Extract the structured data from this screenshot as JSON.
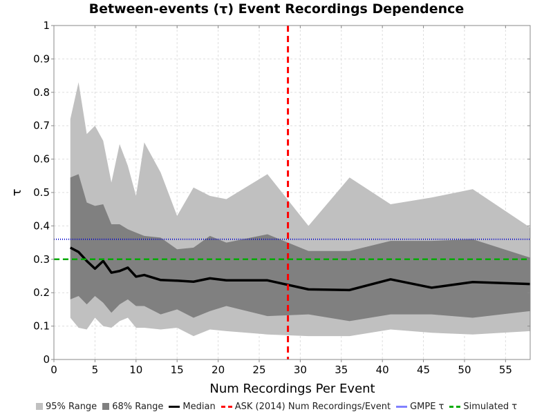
{
  "chart_data": {
    "type": "area",
    "title": "Between-events (τ) Event Recordings Dependence",
    "xlabel": "Num Recordings Per Event",
    "ylabel": "τ",
    "xlim": [
      0,
      58
    ],
    "ylim": [
      0,
      1
    ],
    "xticks": [
      "0",
      "5",
      "10",
      "15",
      "20",
      "25",
      "30",
      "35",
      "40",
      "45",
      "50",
      "55"
    ],
    "yticks": [
      "0",
      "0.1",
      "0.2",
      "0.3",
      "0.4",
      "0.5",
      "0.6",
      "0.7",
      "0.8",
      "0.9",
      "1"
    ],
    "grid": true,
    "legend_position": "bottom",
    "x": [
      2,
      3,
      4,
      5,
      6,
      7,
      8,
      9,
      10,
      11,
      13,
      15,
      17,
      19,
      21,
      26,
      31,
      36,
      41,
      46,
      51,
      58
    ],
    "series": [
      {
        "name": "95% Range",
        "kind": "band",
        "color": "#c0c0c0",
        "lower": [
          0.125,
          0.095,
          0.09,
          0.125,
          0.1,
          0.095,
          0.115,
          0.125,
          0.095,
          0.095,
          0.09,
          0.095,
          0.07,
          0.09,
          0.085,
          0.075,
          0.07,
          0.07,
          0.09,
          0.08,
          0.075,
          0.085
        ],
        "upper": [
          0.72,
          0.83,
          0.675,
          0.7,
          0.655,
          0.53,
          0.645,
          0.58,
          0.49,
          0.65,
          0.56,
          0.43,
          0.515,
          0.49,
          0.48,
          0.555,
          0.4,
          0.545,
          0.465,
          0.485,
          0.51,
          0.395
        ]
      },
      {
        "name": "68% Range",
        "kind": "band",
        "color": "#808080",
        "lower": [
          0.18,
          0.19,
          0.165,
          0.19,
          0.17,
          0.14,
          0.165,
          0.18,
          0.16,
          0.16,
          0.135,
          0.15,
          0.125,
          0.145,
          0.16,
          0.13,
          0.135,
          0.115,
          0.135,
          0.135,
          0.125,
          0.145
        ],
        "upper": [
          0.545,
          0.555,
          0.47,
          0.46,
          0.465,
          0.405,
          0.405,
          0.39,
          0.38,
          0.37,
          0.365,
          0.33,
          0.335,
          0.37,
          0.35,
          0.375,
          0.325,
          0.325,
          0.355,
          0.355,
          0.36,
          0.305
        ]
      },
      {
        "name": "Median",
        "kind": "line",
        "color": "#000000",
        "values": [
          0.335,
          0.322,
          0.295,
          0.272,
          0.295,
          0.26,
          0.265,
          0.275,
          0.248,
          0.253,
          0.238,
          0.236,
          0.233,
          0.243,
          0.237,
          0.237,
          0.21,
          0.208,
          0.24,
          0.215,
          0.232,
          0.226
        ]
      }
    ],
    "reference_lines": [
      {
        "name": "ASK (2014) Num Recordings/Event",
        "orientation": "vertical",
        "value": 28.5,
        "color": "#ff0000",
        "style": "dashed"
      },
      {
        "name": "GMPE τ",
        "orientation": "horizontal",
        "value": 0.36,
        "color": "#8080ff",
        "style": "solid"
      },
      {
        "name": "Simulated τ",
        "orientation": "horizontal",
        "value": 0.3,
        "color": "#00aa00",
        "style": "dashed"
      }
    ],
    "legend": [
      {
        "label": "95% Range",
        "swatch": "box",
        "color": "#c0c0c0"
      },
      {
        "label": "68% Range",
        "swatch": "box",
        "color": "#808080"
      },
      {
        "label": "Median",
        "swatch": "line",
        "color": "#000000",
        "style": "solid"
      },
      {
        "label": "ASK (2014) Num Recordings/Event",
        "swatch": "line",
        "color": "#ff0000",
        "style": "dashed"
      },
      {
        "label": "GMPE τ",
        "swatch": "line",
        "color": "#8080ff",
        "style": "solid"
      },
      {
        "label": "Simulated τ",
        "swatch": "line",
        "color": "#00aa00",
        "style": "dashed"
      }
    ]
  }
}
